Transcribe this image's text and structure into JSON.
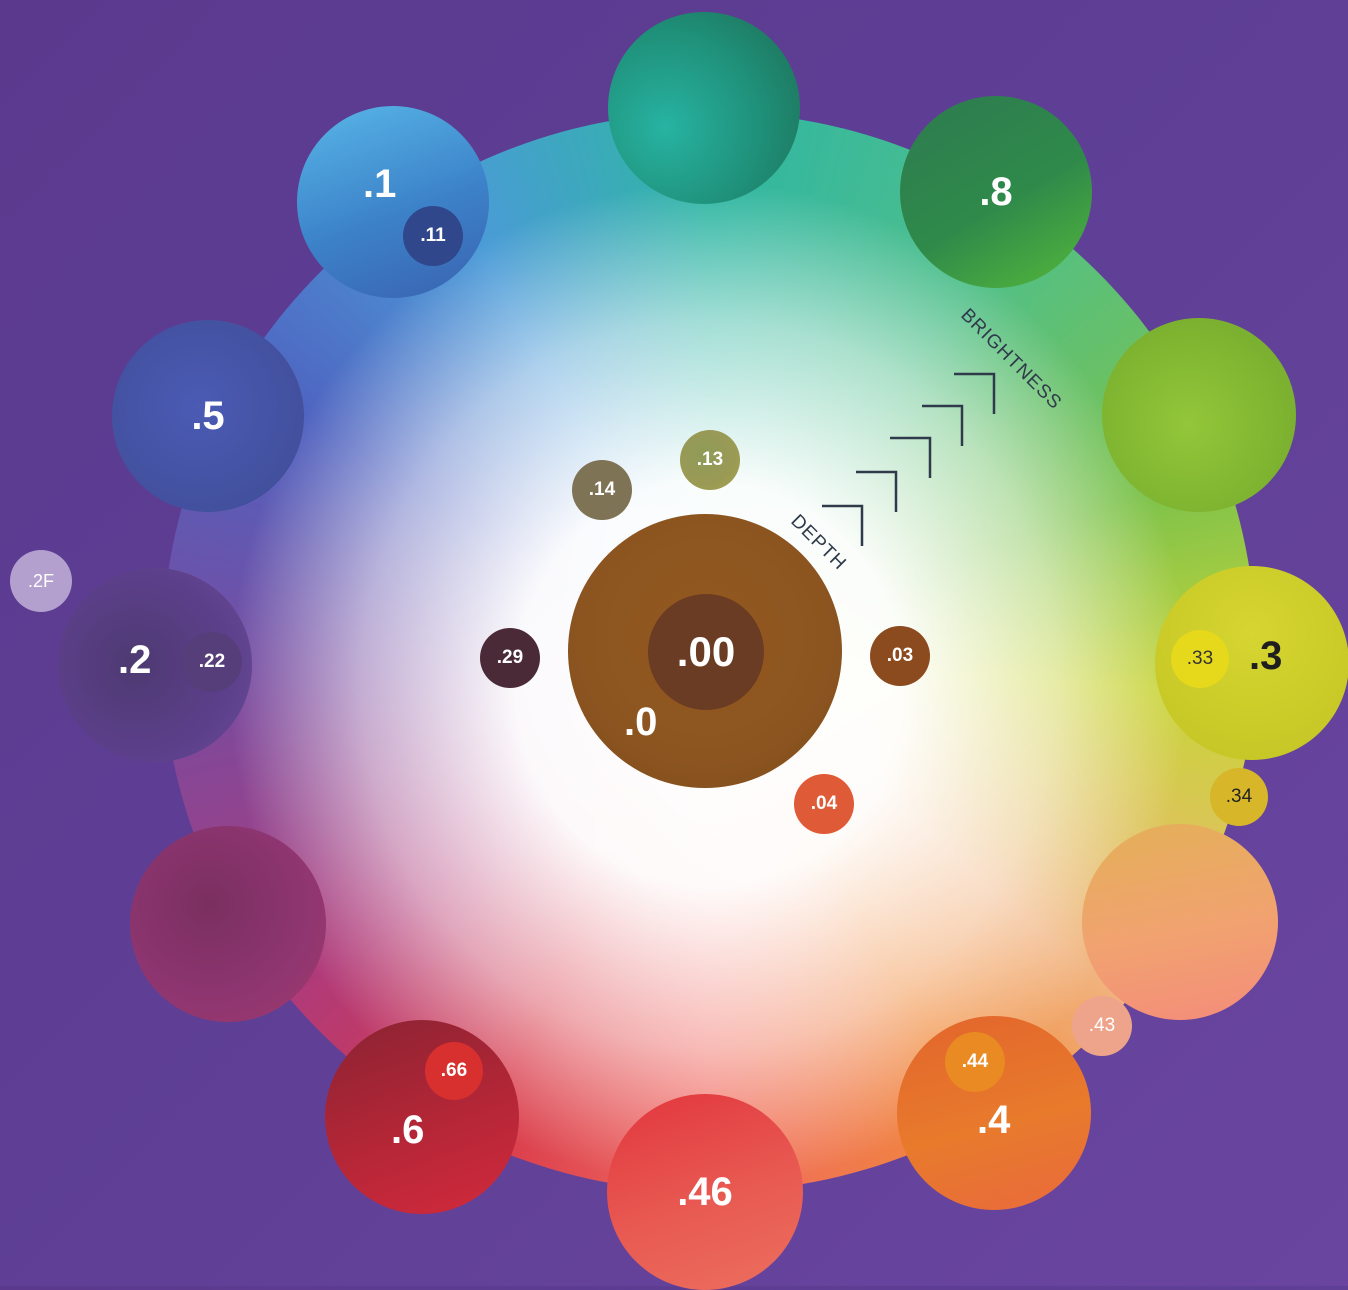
{
  "center": {
    "outer_label": ".0",
    "inner_label": ".00",
    "color": "#8c5520"
  },
  "axis_labels": {
    "depth": "DEPTH",
    "brightness": "BRIGHTNESS"
  },
  "outer_discs": {
    "d1": ".1",
    "d11": ".11",
    "d8": ".8",
    "d5": ".5",
    "d2": ".2",
    "d22": ".22",
    "d2f": ".2F",
    "d3": ".3",
    "d33": ".33",
    "d34": ".34",
    "d43": ".43",
    "d4": ".4",
    "d44": ".44",
    "d46": ".46",
    "d6": ".6",
    "d66": ".66"
  },
  "inner_discs": {
    "d13": ".13",
    "d14": ".14",
    "d29": ".29",
    "d03": ".03",
    "d04": ".04"
  },
  "colors": {
    "background": "#5e3f95",
    "teal": "#2aa89a",
    "dark_green": "#2f8a4f",
    "lime": "#8cbf36",
    "yellow": "#cfd22a",
    "peach": "#f2a46a",
    "orange": "#e87a2c",
    "coral": "#e85b52",
    "crimson": "#c8293a",
    "magenta": "#a23a6e",
    "violet": "#5a3f86",
    "indigo": "#4757a8",
    "sky_blue": "#4d93d6"
  }
}
